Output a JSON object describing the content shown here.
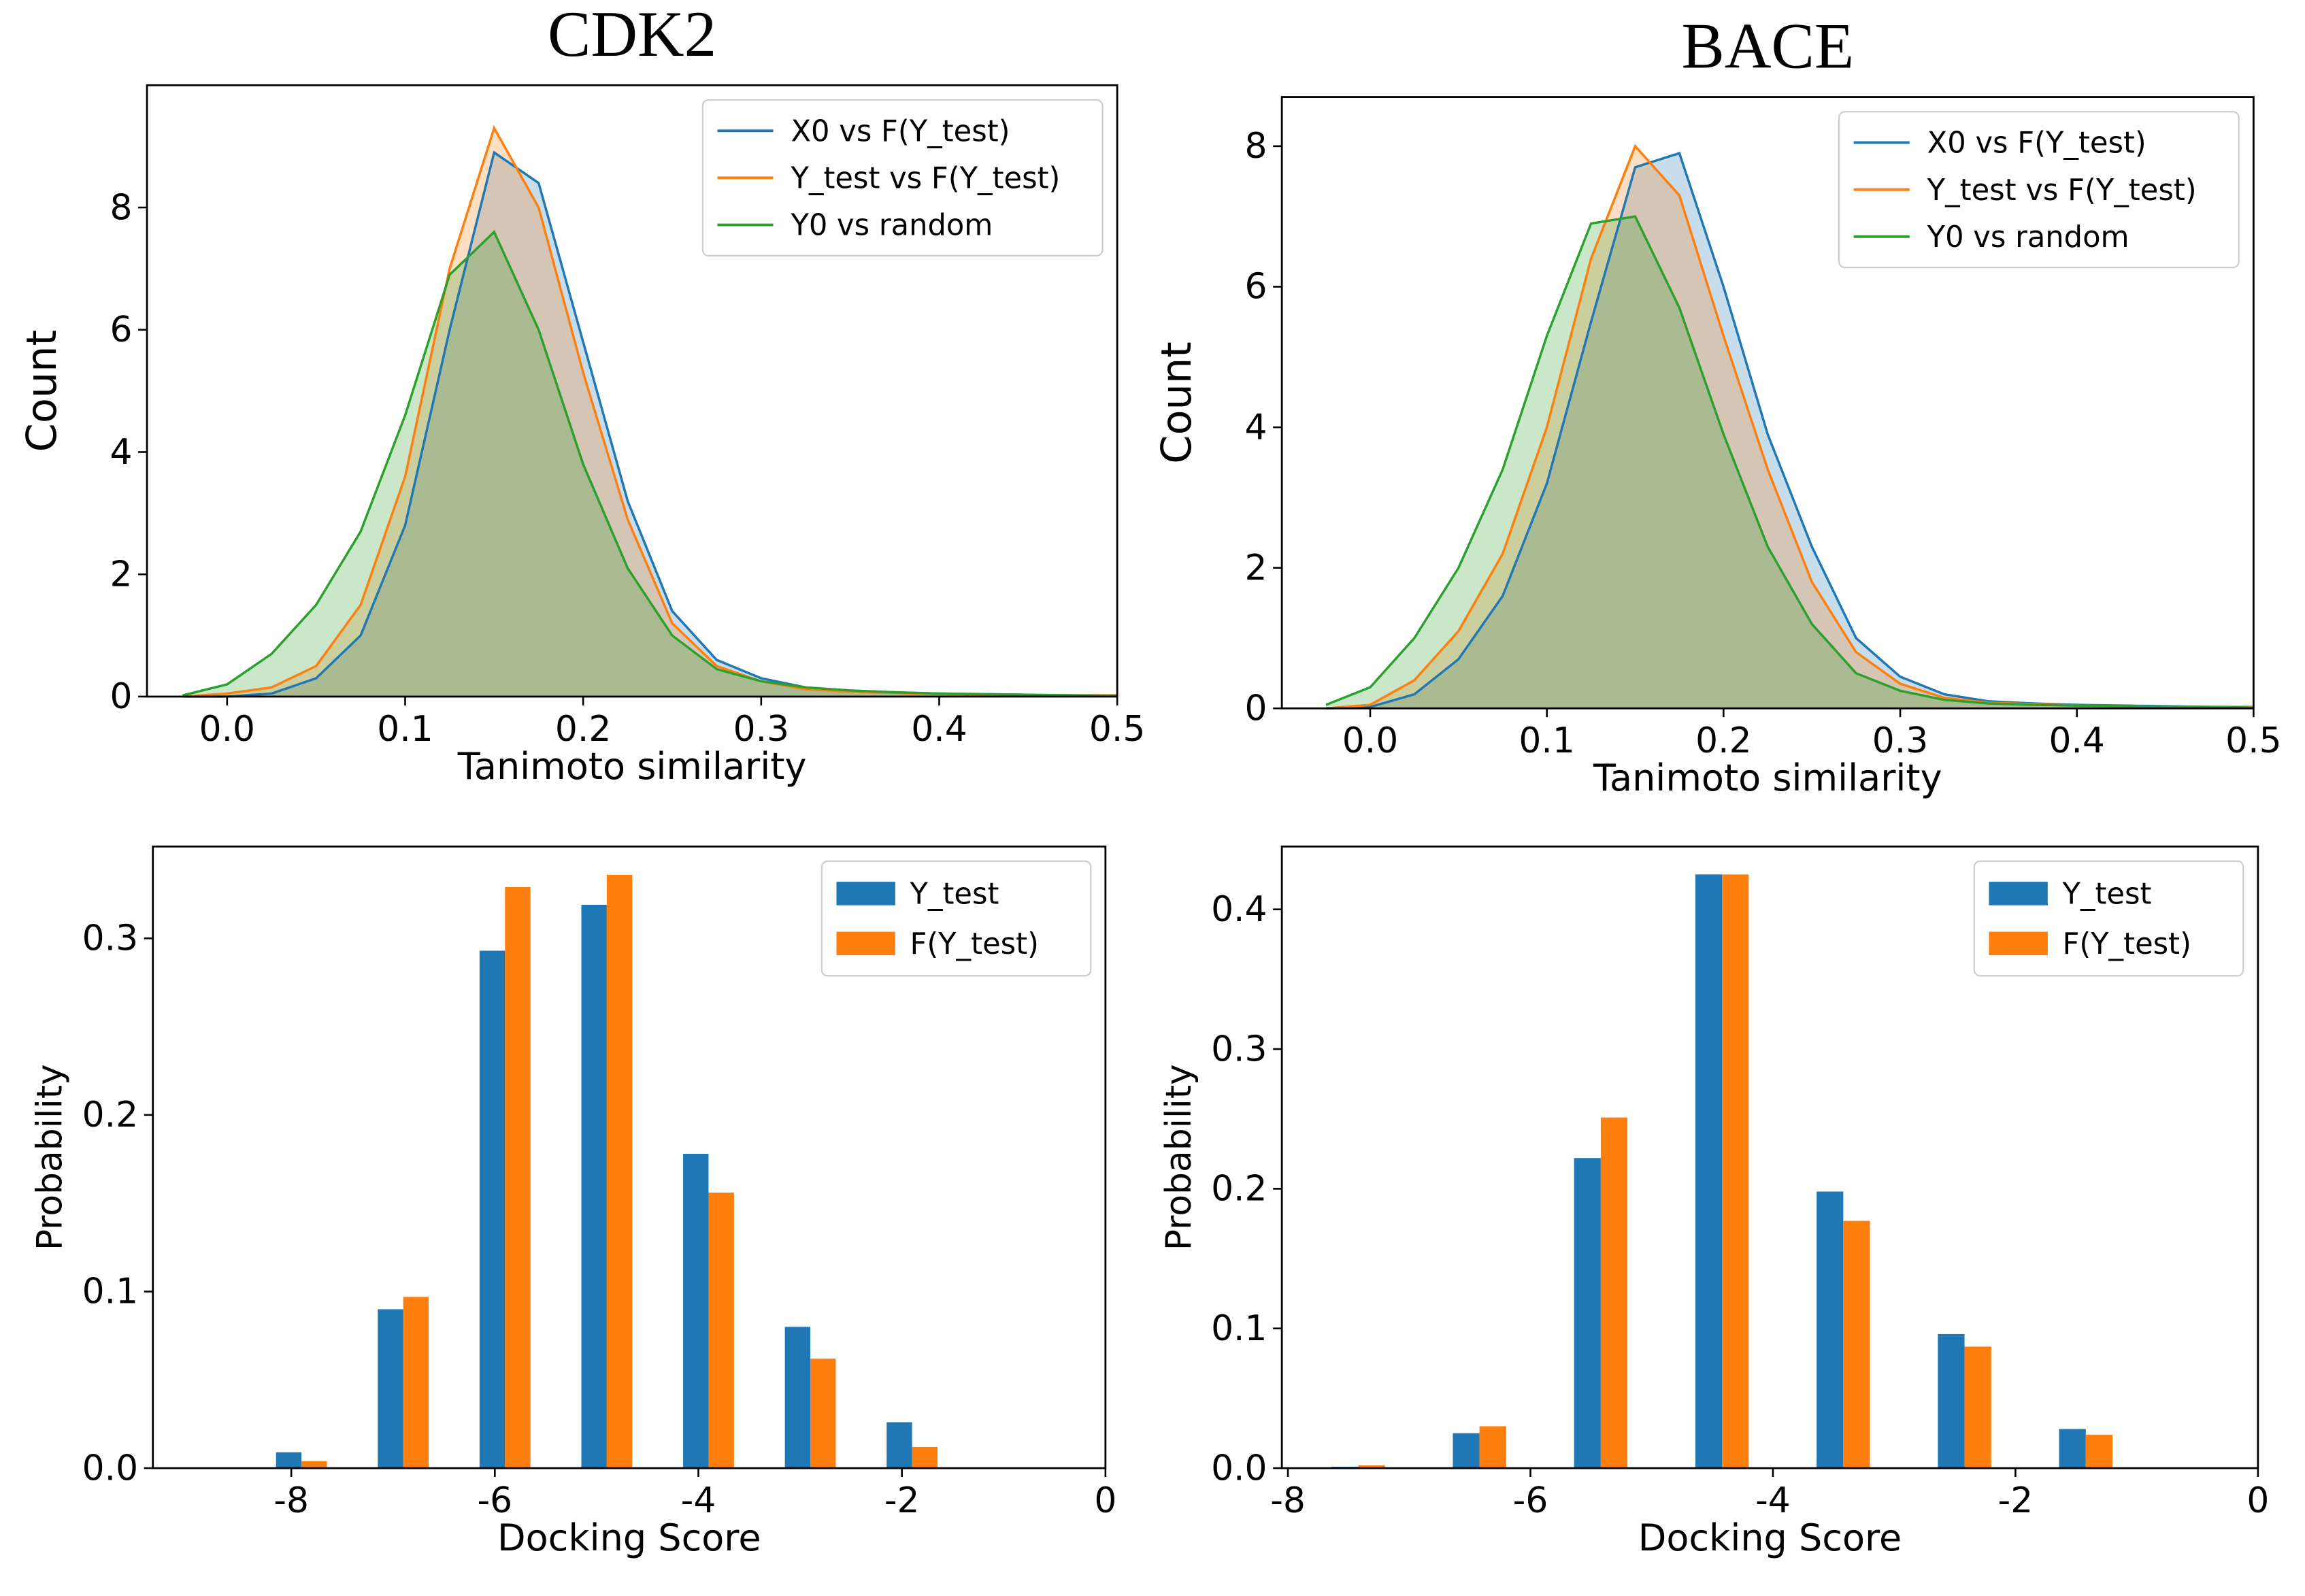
{
  "chart_data": [
    {
      "type": "area",
      "title": "CDK2",
      "xlabel": "Tanimoto similarity",
      "ylabel": "Count",
      "x": [
        -0.025,
        0,
        0.025,
        0.05,
        0.075,
        0.1,
        0.125,
        0.15,
        0.175,
        0.2,
        0.225,
        0.25,
        0.275,
        0.3,
        0.325,
        0.35,
        0.375,
        0.4,
        0.425,
        0.45,
        0.475,
        0.5
      ],
      "series": [
        {
          "name": "X0 vs F(Y_test)",
          "color": "#1f77b4",
          "values": [
            0,
            0,
            0.05,
            0.3,
            1.0,
            2.8,
            6.0,
            8.9,
            8.4,
            5.8,
            3.2,
            1.4,
            0.6,
            0.3,
            0.15,
            0.1,
            0.07,
            0.05,
            0.04,
            0.03,
            0.02,
            0.02
          ]
        },
        {
          "name": "Y_test vs F(Y_test)",
          "color": "#ff7f0e",
          "values": [
            0,
            0.05,
            0.15,
            0.5,
            1.5,
            3.6,
            7.0,
            9.3,
            8.0,
            5.3,
            2.9,
            1.2,
            0.5,
            0.25,
            0.12,
            0.08,
            0.06,
            0.04,
            0.03,
            0.02,
            0.02,
            0.02
          ]
        },
        {
          "name": "Y0 vs random",
          "color": "#2ca02c",
          "values": [
            0.02,
            0.2,
            0.7,
            1.5,
            2.7,
            4.6,
            6.9,
            7.6,
            6.0,
            3.8,
            2.1,
            1.0,
            0.45,
            0.25,
            0.15,
            0.1,
            0.07,
            0.05,
            0.04,
            0.03,
            0.02,
            0.01
          ]
        }
      ],
      "xlim": [
        -0.045,
        0.5
      ],
      "xticks": [
        {
          "value": 0,
          "label": "0.0"
        },
        0.1,
        0.2,
        0.3,
        0.4,
        0.5
      ],
      "ylim": [
        0,
        10
      ],
      "yticks": [
        0,
        2,
        4,
        6,
        8
      ],
      "legend": "upper right"
    },
    {
      "type": "area",
      "title": "BACE",
      "xlabel": "Tanimoto similarity",
      "ylabel": "Count",
      "x": [
        -0.025,
        0,
        0.025,
        0.05,
        0.075,
        0.1,
        0.125,
        0.15,
        0.175,
        0.2,
        0.225,
        0.25,
        0.275,
        0.3,
        0.325,
        0.35,
        0.375,
        0.4,
        0.425,
        0.45,
        0.475,
        0.5
      ],
      "series": [
        {
          "name": "X0 vs F(Y_test)",
          "color": "#1f77b4",
          "values": [
            0,
            0.02,
            0.2,
            0.7,
            1.6,
            3.2,
            5.5,
            7.7,
            7.9,
            6.0,
            3.9,
            2.3,
            1.0,
            0.45,
            0.2,
            0.1,
            0.07,
            0.05,
            0.04,
            0.03,
            0.02,
            0.02
          ]
        },
        {
          "name": "Y_test vs F(Y_test)",
          "color": "#ff7f0e",
          "values": [
            0,
            0.05,
            0.4,
            1.1,
            2.2,
            4.0,
            6.4,
            8.0,
            7.3,
            5.3,
            3.4,
            1.8,
            0.8,
            0.35,
            0.15,
            0.08,
            0.06,
            0.04,
            0.03,
            0.02,
            0.02,
            0.02
          ]
        },
        {
          "name": "Y0 vs random",
          "color": "#2ca02c",
          "values": [
            0.05,
            0.3,
            1.0,
            2.0,
            3.4,
            5.3,
            6.9,
            7.0,
            5.7,
            3.9,
            2.3,
            1.2,
            0.5,
            0.25,
            0.12,
            0.07,
            0.05,
            0.04,
            0.03,
            0.02,
            0.02,
            0.01
          ]
        }
      ],
      "xlim": [
        -0.05,
        0.5
      ],
      "xticks": [
        {
          "value": 0,
          "label": "0.0"
        },
        0.1,
        0.2,
        0.3,
        0.4,
        0.5
      ],
      "ylim": [
        0,
        8.7
      ],
      "yticks": [
        0,
        2,
        4,
        6,
        8
      ],
      "legend": "upper right"
    },
    {
      "type": "bar",
      "xlabel": "Docking Score",
      "ylabel": "Probability",
      "x": [
        -7.9,
        -6.9,
        -5.9,
        -4.9,
        -3.9,
        -2.9,
        -1.9
      ],
      "bar_width": 0.25,
      "series": [
        {
          "name": "Y_test",
          "color": "#1f77b4",
          "values": [
            0.009,
            0.09,
            0.293,
            0.319,
            0.178,
            0.08,
            0.026
          ]
        },
        {
          "name": "F(Y_test)",
          "color": "#ff7f0e",
          "values": [
            0.004,
            0.097,
            0.329,
            0.336,
            0.156,
            0.062,
            0.012
          ]
        }
      ],
      "xlim": [
        -9.36,
        0
      ],
      "xticks": [
        -8,
        -6,
        -4,
        -2,
        0
      ],
      "ylim": [
        0,
        0.352
      ],
      "yticks": [
        {
          "value": 0,
          "label": "0.0"
        },
        0.1,
        0.2,
        0.3
      ],
      "legend": "upper right"
    },
    {
      "type": "bar",
      "xlabel": "Docking Score",
      "ylabel": "Probability",
      "x": [
        -7.42,
        -6.42,
        -5.42,
        -4.42,
        -3.42,
        -2.42,
        -1.42
      ],
      "bar_width": 0.22,
      "series": [
        {
          "name": "Y_test",
          "color": "#1f77b4",
          "values": [
            0.001,
            0.025,
            0.222,
            0.425,
            0.198,
            0.096,
            0.028
          ]
        },
        {
          "name": "F(Y_test)",
          "color": "#ff7f0e",
          "values": [
            0.002,
            0.03,
            0.251,
            0.425,
            0.177,
            0.087,
            0.024
          ]
        }
      ],
      "xlim": [
        -8.05,
        0
      ],
      "xticks": [
        -8,
        -6,
        -4,
        -2,
        0
      ],
      "ylim": [
        0,
        0.445
      ],
      "yticks": [
        {
          "value": 0,
          "label": "0.0"
        },
        0.1,
        0.2,
        0.3,
        0.4
      ],
      "legend": "upper right"
    }
  ]
}
